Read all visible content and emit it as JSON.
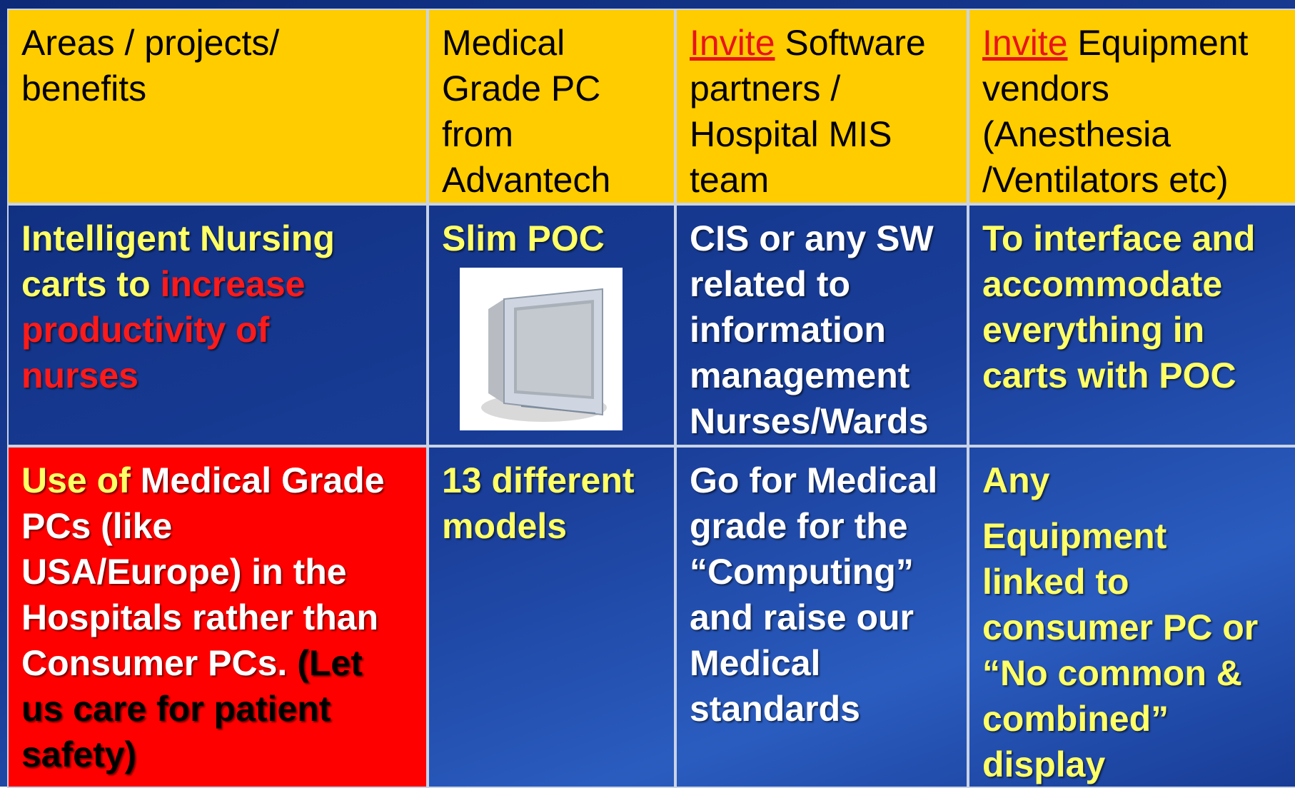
{
  "table": {
    "rows": [
      {
        "background": "#ffcc00",
        "bold": false,
        "cells": [
          {
            "lines": [
              [
                {
                  "text": "Areas / projects/",
                  "color": "#000000"
                }
              ],
              [
                {
                  "text": "benefits",
                  "color": "#000000"
                }
              ]
            ]
          },
          {
            "lines": [
              [
                {
                  "text": "Medical",
                  "color": "#000000"
                }
              ],
              [
                {
                  "text": "Grade PC",
                  "color": "#000000"
                }
              ],
              [
                {
                  "text": "from",
                  "color": "#000000"
                }
              ],
              [
                {
                  "text": "Advantech",
                  "color": "#000000"
                }
              ]
            ]
          },
          {
            "lines": [
              [
                {
                  "text": "Invite",
                  "color": "#e8141a",
                  "underline": true
                },
                {
                  "text": " Software",
                  "color": "#000000"
                }
              ],
              [
                {
                  "text": "partners /",
                  "color": "#000000"
                }
              ],
              [
                {
                  "text": "Hospital MIS",
                  "color": "#000000"
                }
              ],
              [
                {
                  "text": "team",
                  "color": "#000000"
                }
              ]
            ]
          },
          {
            "lines": [
              [
                {
                  "text": "Invite",
                  "color": "#e8141a",
                  "underline": true
                },
                {
                  "text": " Equipment",
                  "color": "#000000"
                }
              ],
              [
                {
                  "text": "vendors",
                  "color": "#000000"
                }
              ],
              [
                {
                  "text": "(Anesthesia",
                  "color": "#000000"
                }
              ],
              [
                {
                  "text": "/Ventilators etc)",
                  "color": "#000000"
                }
              ]
            ]
          }
        ]
      },
      {
        "background": null,
        "bold": true,
        "cells": [
          {
            "lines": [
              [
                {
                  "text": "Intelligent Nursing",
                  "color": "#ffff66"
                }
              ],
              [
                {
                  "text": "carts to ",
                  "color": "#ffff66"
                },
                {
                  "text": "increase",
                  "color": "#ff1a1a"
                }
              ],
              [
                {
                  "text": "productivity of",
                  "color": "#ff1a1a"
                }
              ],
              [
                {
                  "text": "nurses",
                  "color": "#ff1a1a"
                }
              ]
            ]
          },
          {
            "lines": [
              [
                {
                  "text": "Slim POC",
                  "color": "#ffff66"
                }
              ]
            ]
          },
          {
            "lines": [
              [
                {
                  "text": "CIS or any SW",
                  "color": "#ffffff"
                }
              ],
              [
                {
                  "text": "related to",
                  "color": "#ffffff"
                }
              ],
              [
                {
                  "text": "information",
                  "color": "#ffffff"
                }
              ],
              [
                {
                  "text": "management",
                  "color": "#ffffff"
                }
              ],
              [
                {
                  "text": "Nurses/Wards",
                  "color": "#ffffff"
                }
              ]
            ]
          },
          {
            "lines": [
              [
                {
                  "text": "To interface and",
                  "color": "#ffff66"
                }
              ],
              [
                {
                  "text": "accommodate",
                  "color": "#ffff66"
                }
              ],
              [
                {
                  "text": "everything in",
                  "color": "#ffff66"
                }
              ],
              [
                {
                  "text": "carts with POC",
                  "color": "#ffff66"
                }
              ]
            ]
          }
        ]
      },
      {
        "background": null,
        "bold": true,
        "cells": [
          {
            "background": "#ff0000",
            "lines": [
              [
                {
                  "text": "Use of ",
                  "color": "#ffff66"
                },
                {
                  "text": "Medical Grade",
                  "color": "#ffffff"
                }
              ],
              [
                {
                  "text": "PCs (like",
                  "color": "#ffffff"
                }
              ],
              [
                {
                  "text": "USA/Europe) in the",
                  "color": "#ffffff"
                }
              ],
              [
                {
                  "text": "Hospitals rather than",
                  "color": "#ffffff"
                }
              ],
              [
                {
                  "text": "Consumer PCs. ",
                  "color": "#ffffff"
                },
                {
                  "text": "(Let",
                  "color": "#000000"
                }
              ],
              [
                {
                  "text": "us care for patient",
                  "color": "#000000"
                }
              ],
              [
                {
                  "text": "safety)",
                  "color": "#000000"
                }
              ]
            ]
          },
          {
            "lines": [
              [
                {
                  "text": "13 different",
                  "color": "#ffff66"
                }
              ],
              [
                {
                  "text": "models",
                  "color": "#ffff66"
                }
              ]
            ]
          },
          {
            "lines": [
              [
                {
                  "text": "Go for Medical",
                  "color": "#ffffff"
                }
              ],
              [
                {
                  "text": "grade  for the",
                  "color": "#ffffff"
                }
              ],
              [
                {
                  "text": "“Computing”",
                  "color": "#ffffff"
                }
              ],
              [
                {
                  "text": "and raise our",
                  "color": "#ffffff"
                }
              ],
              [
                {
                  "text": "Medical",
                  "color": "#ffffff"
                }
              ],
              [
                {
                  "text": "standards",
                  "color": "#ffffff"
                }
              ]
            ]
          },
          {
            "lines": [
              [
                {
                  "text": "Any",
                  "color": "#ffff66"
                }
              ],
              [
                {
                  "text": "Equipment",
                  "color": "#ffff66"
                }
              ],
              [
                {
                  "text": "linked to",
                  "color": "#ffff66"
                }
              ],
              [
                {
                  "text": "consumer PC or",
                  "color": "#ffff66"
                }
              ],
              [
                {
                  "text": "“No common &",
                  "color": "#ffff66"
                }
              ],
              [
                {
                  "text": "combined”",
                  "color": "#ffff66"
                }
              ],
              [
                {
                  "text": "display",
                  "color": "#ffff66"
                }
              ]
            ]
          }
        ]
      }
    ]
  }
}
